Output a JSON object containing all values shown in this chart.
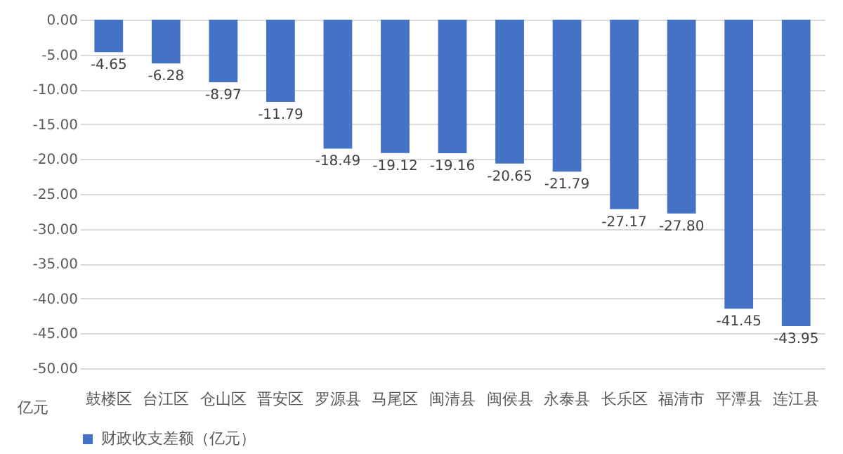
{
  "chart_data": {
    "type": "bar",
    "ylabel": "亿元",
    "categories": [
      "鼓楼区",
      "台江区",
      "仓山区",
      "晋安区",
      "罗源县",
      "马尾区",
      "闽清县",
      "闽侯县",
      "永泰县",
      "长乐区",
      "福清市",
      "平潭县",
      "连江县"
    ],
    "series": [
      {
        "name": "财政收支差额（亿元）",
        "color": "#4472c4",
        "values": [
          -4.65,
          -6.28,
          -8.97,
          -11.79,
          -18.49,
          -19.12,
          -19.16,
          -20.65,
          -21.79,
          -27.17,
          -27.8,
          -41.45,
          -43.95
        ]
      }
    ],
    "value_labels": [
      "-4.65",
      "-6.28",
      "-8.97",
      "-11.79",
      "-18.49",
      "-19.12",
      "-19.16",
      "-20.65",
      "-21.79",
      "-27.17",
      "-27.80",
      "-41.45",
      "-43.95"
    ],
    "ylim": [
      -50,
      0
    ],
    "yticks": [
      {
        "value": 0,
        "label": "0.00"
      },
      {
        "value": -5,
        "label": "-5.00"
      },
      {
        "value": -10,
        "label": "-10.00"
      },
      {
        "value": -15,
        "label": "-15.00"
      },
      {
        "value": -20,
        "label": "-20.00"
      },
      {
        "value": -25,
        "label": "-25.00"
      },
      {
        "value": -30,
        "label": "-30.00"
      },
      {
        "value": -35,
        "label": "-35.00"
      },
      {
        "value": -40,
        "label": "-40.00"
      },
      {
        "value": -45,
        "label": "-45.00"
      },
      {
        "value": -50,
        "label": "-50.00"
      }
    ],
    "grid": true,
    "legend": "bottom"
  }
}
